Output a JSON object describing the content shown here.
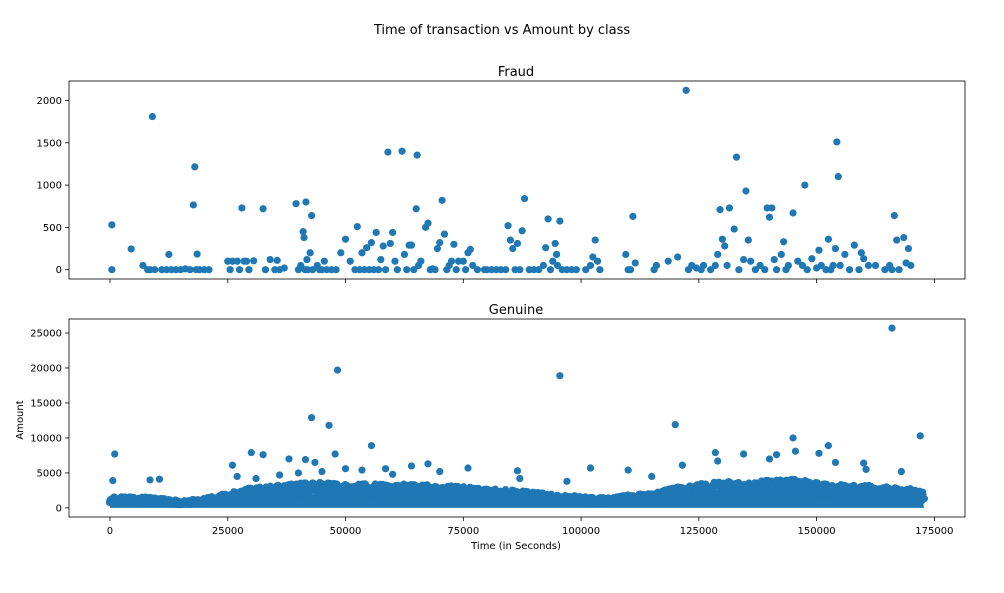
{
  "figure": {
    "suptitle": "Time of transaction vs Amount by class",
    "marker_color": "#1f77b4"
  },
  "chart_data": [
    {
      "type": "scatter",
      "title": "Fraud",
      "xlabel": "",
      "ylabel": "",
      "xlim": [
        -8700,
        181500
      ],
      "ylim": [
        -110,
        2230
      ],
      "xticks": [
        0,
        25000,
        50000,
        75000,
        100000,
        125000,
        150000,
        175000
      ],
      "xtick_labels_shown": false,
      "yticks": [
        0,
        500,
        1000,
        1500,
        2000
      ],
      "ytick_labels": [
        "0",
        "500",
        "1000",
        "1500",
        "2000"
      ],
      "grid": false,
      "points": [
        [
          400,
          530
        ],
        [
          400,
          0
        ],
        [
          4500,
          245
        ],
        [
          7000,
          50
        ],
        [
          8000,
          0
        ],
        [
          8500,
          0
        ],
        [
          9000,
          1810
        ],
        [
          9500,
          0
        ],
        [
          11000,
          0
        ],
        [
          12000,
          0
        ],
        [
          12500,
          180
        ],
        [
          13000,
          0
        ],
        [
          14000,
          0
        ],
        [
          15000,
          0
        ],
        [
          16000,
          10
        ],
        [
          17000,
          0
        ],
        [
          17700,
          765
        ],
        [
          18000,
          1215
        ],
        [
          18300,
          0
        ],
        [
          18500,
          185
        ],
        [
          19000,
          0
        ],
        [
          20000,
          0
        ],
        [
          21000,
          0
        ],
        [
          25000,
          100
        ],
        [
          25500,
          0
        ],
        [
          26000,
          100
        ],
        [
          27000,
          100
        ],
        [
          27500,
          0
        ],
        [
          28000,
          730
        ],
        [
          28500,
          100
        ],
        [
          29000,
          100
        ],
        [
          29500,
          0
        ],
        [
          30500,
          105
        ],
        [
          32500,
          720
        ],
        [
          33000,
          0
        ],
        [
          34000,
          120
        ],
        [
          35000,
          0
        ],
        [
          35500,
          110
        ],
        [
          36000,
          0
        ],
        [
          37000,
          20
        ],
        [
          39500,
          780
        ],
        [
          40000,
          0
        ],
        [
          40500,
          50
        ],
        [
          41000,
          450
        ],
        [
          41200,
          380
        ],
        [
          41400,
          0
        ],
        [
          41600,
          800
        ],
        [
          41800,
          120
        ],
        [
          42000,
          0
        ],
        [
          42500,
          200
        ],
        [
          42800,
          640
        ],
        [
          43000,
          0
        ],
        [
          44000,
          50
        ],
        [
          44500,
          0
        ],
        [
          45000,
          0
        ],
        [
          45500,
          100
        ],
        [
          46000,
          0
        ],
        [
          47000,
          0
        ],
        [
          48000,
          0
        ],
        [
          49000,
          200
        ],
        [
          50000,
          360
        ],
        [
          51000,
          100
        ],
        [
          52000,
          0
        ],
        [
          52500,
          510
        ],
        [
          53000,
          0
        ],
        [
          53500,
          200
        ],
        [
          54000,
          0
        ],
        [
          54500,
          260
        ],
        [
          55000,
          0
        ],
        [
          55500,
          320
        ],
        [
          56000,
          0
        ],
        [
          56500,
          440
        ],
        [
          57000,
          0
        ],
        [
          57500,
          120
        ],
        [
          58000,
          280
        ],
        [
          58500,
          0
        ],
        [
          59000,
          1390
        ],
        [
          59500,
          310
        ],
        [
          60000,
          440
        ],
        [
          60500,
          100
        ],
        [
          61000,
          0
        ],
        [
          62000,
          1400
        ],
        [
          62500,
          180
        ],
        [
          63000,
          0
        ],
        [
          63500,
          290
        ],
        [
          64000,
          290
        ],
        [
          64500,
          0
        ],
        [
          65000,
          720
        ],
        [
          65200,
          1355
        ],
        [
          65500,
          50
        ],
        [
          66000,
          100
        ],
        [
          67000,
          500
        ],
        [
          67500,
          550
        ],
        [
          68000,
          0
        ],
        [
          68500,
          10
        ],
        [
          69000,
          0
        ],
        [
          69500,
          250
        ],
        [
          70000,
          320
        ],
        [
          70500,
          820
        ],
        [
          71000,
          420
        ],
        [
          71500,
          0
        ],
        [
          72000,
          50
        ],
        [
          72500,
          100
        ],
        [
          73000,
          300
        ],
        [
          73500,
          0
        ],
        [
          74000,
          100
        ],
        [
          75000,
          100
        ],
        [
          75500,
          0
        ],
        [
          76000,
          200
        ],
        [
          76500,
          240
        ],
        [
          77000,
          50
        ],
        [
          78000,
          0
        ],
        [
          79500,
          0
        ],
        [
          80000,
          0
        ],
        [
          81000,
          0
        ],
        [
          82000,
          0
        ],
        [
          83000,
          0
        ],
        [
          84000,
          0
        ],
        [
          84500,
          520
        ],
        [
          85000,
          350
        ],
        [
          85500,
          250
        ],
        [
          86000,
          0
        ],
        [
          86500,
          310
        ],
        [
          87000,
          0
        ],
        [
          87500,
          460
        ],
        [
          88000,
          840
        ],
        [
          89000,
          0
        ],
        [
          90000,
          0
        ],
        [
          91000,
          0
        ],
        [
          92000,
          50
        ],
        [
          92500,
          260
        ],
        [
          93000,
          600
        ],
        [
          93500,
          0
        ],
        [
          94000,
          100
        ],
        [
          94500,
          310
        ],
        [
          94800,
          180
        ],
        [
          95000,
          50
        ],
        [
          95500,
          575
        ],
        [
          96000,
          0
        ],
        [
          97000,
          0
        ],
        [
          98000,
          0
        ],
        [
          99000,
          0
        ],
        [
          101000,
          0
        ],
        [
          102000,
          50
        ],
        [
          102500,
          150
        ],
        [
          103000,
          350
        ],
        [
          103500,
          100
        ],
        [
          104000,
          0
        ],
        [
          109500,
          180
        ],
        [
          110000,
          0
        ],
        [
          110500,
          0
        ],
        [
          111000,
          630
        ],
        [
          111500,
          80
        ],
        [
          115500,
          0
        ],
        [
          116000,
          50
        ],
        [
          118500,
          100
        ],
        [
          120500,
          150
        ],
        [
          122300,
          2120
        ],
        [
          122800,
          0
        ],
        [
          123500,
          50
        ],
        [
          124500,
          20
        ],
        [
          125500,
          0
        ],
        [
          126000,
          50
        ],
        [
          127500,
          0
        ],
        [
          128500,
          50
        ],
        [
          129000,
          180
        ],
        [
          129500,
          710
        ],
        [
          130000,
          360
        ],
        [
          130500,
          280
        ],
        [
          131000,
          50
        ],
        [
          131500,
          730
        ],
        [
          132500,
          480
        ],
        [
          133000,
          1330
        ],
        [
          133500,
          0
        ],
        [
          134500,
          120
        ],
        [
          135000,
          930
        ],
        [
          135500,
          350
        ],
        [
          136000,
          100
        ],
        [
          137000,
          0
        ],
        [
          138000,
          50
        ],
        [
          139000,
          0
        ],
        [
          139500,
          730
        ],
        [
          140000,
          620
        ],
        [
          140500,
          730
        ],
        [
          141000,
          120
        ],
        [
          141500,
          0
        ],
        [
          142500,
          180
        ],
        [
          143000,
          330
        ],
        [
          143500,
          0
        ],
        [
          144000,
          50
        ],
        [
          145000,
          670
        ],
        [
          146000,
          100
        ],
        [
          147000,
          50
        ],
        [
          147500,
          1000
        ],
        [
          148000,
          0
        ],
        [
          149000,
          130
        ],
        [
          150000,
          20
        ],
        [
          150500,
          230
        ],
        [
          151000,
          50
        ],
        [
          152000,
          0
        ],
        [
          152500,
          360
        ],
        [
          153000,
          0
        ],
        [
          153500,
          50
        ],
        [
          154000,
          250
        ],
        [
          154300,
          1510
        ],
        [
          154600,
          1100
        ],
        [
          155000,
          50
        ],
        [
          156000,
          180
        ],
        [
          157000,
          0
        ],
        [
          158000,
          290
        ],
        [
          159000,
          0
        ],
        [
          159500,
          200
        ],
        [
          160000,
          130
        ],
        [
          161000,
          50
        ],
        [
          162500,
          50
        ],
        [
          164500,
          0
        ],
        [
          165500,
          50
        ],
        [
          166000,
          0
        ],
        [
          166500,
          640
        ],
        [
          167000,
          350
        ],
        [
          167500,
          0
        ],
        [
          168500,
          380
        ],
        [
          169000,
          80
        ],
        [
          169500,
          250
        ],
        [
          170000,
          50
        ]
      ]
    },
    {
      "type": "scatter",
      "title": "Genuine",
      "xlabel": "Time (in Seconds)",
      "ylabel": "Amount",
      "xlim": [
        -8700,
        181500
      ],
      "ylim": [
        -1300,
        27000
      ],
      "xticks": [
        0,
        25000,
        50000,
        75000,
        100000,
        125000,
        150000,
        175000
      ],
      "xtick_labels": [
        "0",
        "25000",
        "50000",
        "75000",
        "100000",
        "125000",
        "150000",
        "175000"
      ],
      "yticks": [
        0,
        5000,
        10000,
        15000,
        20000,
        25000
      ],
      "ytick_labels": [
        "0",
        "5000",
        "10000",
        "15000",
        "20000",
        "25000"
      ],
      "grid": false,
      "density_envelope": [
        [
          0,
          1500
        ],
        [
          5000,
          1600
        ],
        [
          10000,
          1400
        ],
        [
          15000,
          1000
        ],
        [
          20000,
          1300
        ],
        [
          25000,
          2000
        ],
        [
          30000,
          2800
        ],
        [
          35000,
          3000
        ],
        [
          40000,
          3400
        ],
        [
          45000,
          3500
        ],
        [
          50000,
          3200
        ],
        [
          55000,
          3300
        ],
        [
          60000,
          3200
        ],
        [
          65000,
          3300
        ],
        [
          70000,
          3100
        ],
        [
          75000,
          2900
        ],
        [
          80000,
          2600
        ],
        [
          85000,
          2500
        ],
        [
          90000,
          2200
        ],
        [
          95000,
          1800
        ],
        [
          100000,
          1600
        ],
        [
          105000,
          1400
        ],
        [
          110000,
          1800
        ],
        [
          115000,
          2000
        ],
        [
          120000,
          2800
        ],
        [
          125000,
          3300
        ],
        [
          130000,
          3600
        ],
        [
          135000,
          3500
        ],
        [
          140000,
          3800
        ],
        [
          145000,
          3900
        ],
        [
          150000,
          3600
        ],
        [
          155000,
          3300
        ],
        [
          160000,
          3100
        ],
        [
          165000,
          2900
        ],
        [
          170000,
          2600
        ],
        [
          172800,
          2200
        ]
      ],
      "outliers": [
        [
          600,
          3900
        ],
        [
          1000,
          7700
        ],
        [
          8500,
          4000
        ],
        [
          10500,
          4100
        ],
        [
          26000,
          6100
        ],
        [
          27000,
          4500
        ],
        [
          30000,
          7900
        ],
        [
          31000,
          4200
        ],
        [
          32500,
          7600
        ],
        [
          38000,
          7000
        ],
        [
          40000,
          5000
        ],
        [
          41500,
          6900
        ],
        [
          42800,
          12900
        ],
        [
          43500,
          6500
        ],
        [
          46500,
          11800
        ],
        [
          47800,
          7700
        ],
        [
          48300,
          19700
        ],
        [
          50000,
          5600
        ],
        [
          53500,
          5400
        ],
        [
          55500,
          8900
        ],
        [
          58500,
          5600
        ],
        [
          64000,
          6000
        ],
        [
          67500,
          6300
        ],
        [
          70000,
          5200
        ],
        [
          76000,
          5700
        ],
        [
          86500,
          5300
        ],
        [
          95500,
          18900
        ],
        [
          102000,
          5700
        ],
        [
          110000,
          5400
        ],
        [
          120000,
          11900
        ],
        [
          121500,
          6100
        ],
        [
          128500,
          7900
        ],
        [
          129000,
          6700
        ],
        [
          134500,
          7700
        ],
        [
          140000,
          7000
        ],
        [
          141500,
          7600
        ],
        [
          145000,
          10000
        ],
        [
          145500,
          8100
        ],
        [
          150500,
          7800
        ],
        [
          152500,
          8900
        ],
        [
          154000,
          6500
        ],
        [
          160000,
          6400
        ],
        [
          166000,
          25700
        ],
        [
          172000,
          10300
        ],
        [
          160500,
          5500
        ],
        [
          168000,
          5200
        ],
        [
          115000,
          4500
        ],
        [
          97000,
          3800
        ],
        [
          87000,
          4200
        ],
        [
          60000,
          4800
        ],
        [
          45000,
          5200
        ],
        [
          36000,
          4700
        ]
      ]
    }
  ]
}
